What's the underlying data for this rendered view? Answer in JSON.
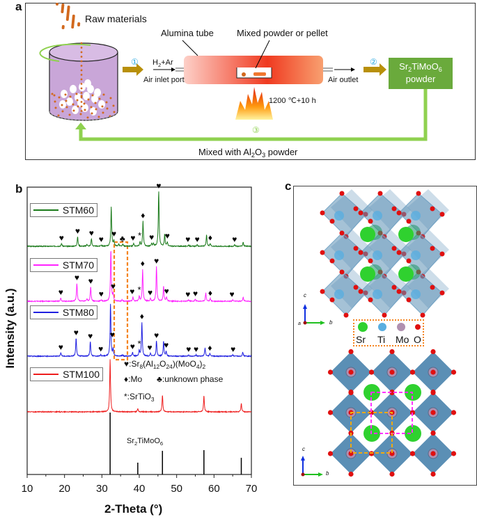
{
  "panel_a": {
    "label": "a",
    "raw_materials": "Raw materials",
    "alumina_tube": "Alumina tube",
    "mixed_powder": "Mixed powder or pellet",
    "gas": [
      "H",
      "2",
      "+Ar"
    ],
    "air_inlet": "Air inlet port",
    "air_outlet": "Air outlet",
    "condition": "1200 ℃+10 h",
    "step1": "①",
    "step2": "②",
    "step3": "③",
    "product": [
      "Sr",
      "2",
      "TiMoO",
      "6"
    ],
    "product_line2": "powder",
    "recycle": [
      "Mixed with Al",
      "2",
      "O",
      "3",
      " powder"
    ],
    "colors": {
      "product_box": "#6aaa3c",
      "recycle_line": "#8fd14f",
      "arrow": "#b8900a",
      "cylinder": "#c9a6d8",
      "step_label": "#29a8e0"
    }
  },
  "chart_data": {
    "type": "line",
    "panel_label": "b",
    "xlabel": "2-Theta (°)",
    "ylabel": "Intensity (a.u.)",
    "xlim": [
      10,
      70
    ],
    "xticks": [
      10,
      20,
      30,
      40,
      50,
      60,
      70
    ],
    "grid": false,
    "series": [
      {
        "name": "STM60",
        "color": "#1a7a1a",
        "peaks": [
          [
            19.2,
            4
          ],
          [
            23.5,
            14
          ],
          [
            26,
            3
          ],
          [
            27.2,
            11
          ],
          [
            29.8,
            2
          ],
          [
            32.5,
            57
          ],
          [
            33.2,
            8
          ],
          [
            34.5,
            3
          ],
          [
            35.6,
            3
          ],
          [
            38.5,
            4
          ],
          [
            40.2,
            6
          ],
          [
            41,
            36
          ],
          [
            43.3,
            4
          ],
          [
            43.8,
            4
          ],
          [
            45.2,
            79
          ],
          [
            46.8,
            17
          ],
          [
            47.5,
            6
          ],
          [
            53.2,
            2
          ],
          [
            55.5,
            2
          ],
          [
            58,
            16
          ],
          [
            59,
            4
          ],
          [
            65.5,
            2
          ],
          [
            67.8,
            6
          ]
        ],
        "markers": [
          [
            19.2,
            "♥"
          ],
          [
            23.5,
            "♥"
          ],
          [
            27.2,
            "♥"
          ],
          [
            29.8,
            "♥"
          ],
          [
            33.2,
            "♥"
          ],
          [
            35.5,
            "♣"
          ],
          [
            38.3,
            "♥"
          ],
          [
            40.1,
            "*"
          ],
          [
            41,
            "♦"
          ],
          [
            43.3,
            "♥"
          ],
          [
            45.2,
            "♥"
          ],
          [
            47.5,
            "♥"
          ],
          [
            53,
            "♥"
          ],
          [
            55.5,
            "♥"
          ],
          [
            59,
            "♦"
          ],
          [
            65.5,
            "♥"
          ]
        ]
      },
      {
        "name": "STM70",
        "color": "#ff22ff",
        "peaks": [
          [
            19,
            5
          ],
          [
            23.3,
            26
          ],
          [
            26,
            3
          ],
          [
            27,
            21
          ],
          [
            29.8,
            2
          ],
          [
            32.4,
            75
          ],
          [
            33,
            10
          ],
          [
            35.4,
            2
          ],
          [
            38.3,
            6
          ],
          [
            40,
            7
          ],
          [
            40.9,
            46
          ],
          [
            43,
            4
          ],
          [
            44.6,
            50
          ],
          [
            46.5,
            22
          ],
          [
            47.3,
            6
          ],
          [
            53.2,
            2
          ],
          [
            55,
            3
          ],
          [
            57.8,
            12
          ],
          [
            59,
            4
          ],
          [
            65,
            2
          ],
          [
            67.8,
            6
          ]
        ],
        "markers": [
          [
            19,
            "♥"
          ],
          [
            23.3,
            "♥"
          ],
          [
            27,
            "♥"
          ],
          [
            29.8,
            "♥"
          ],
          [
            33,
            "♥"
          ],
          [
            38.1,
            "♥"
          ],
          [
            40,
            "*"
          ],
          [
            40.9,
            "♦"
          ],
          [
            42.9,
            "♥"
          ],
          [
            44.6,
            "♥"
          ],
          [
            47.3,
            "♥"
          ],
          [
            53,
            "♥"
          ],
          [
            55,
            "♥"
          ],
          [
            59,
            "♦"
          ],
          [
            64.8,
            "♥"
          ]
        ]
      },
      {
        "name": "STM80",
        "color": "#1f1fe0",
        "peaks": [
          [
            19,
            5
          ],
          [
            23.1,
            26
          ],
          [
            26.9,
            21
          ],
          [
            29.7,
            2
          ],
          [
            32.3,
            75
          ],
          [
            33,
            10
          ],
          [
            35.5,
            2
          ],
          [
            38.2,
            6
          ],
          [
            40,
            8
          ],
          [
            40.7,
            49
          ],
          [
            43,
            4
          ],
          [
            44.6,
            22
          ],
          [
            46.5,
            22
          ],
          [
            47.2,
            7
          ],
          [
            53.2,
            2
          ],
          [
            55.2,
            2
          ],
          [
            57.6,
            12
          ],
          [
            58.9,
            4
          ],
          [
            65,
            2
          ],
          [
            67.7,
            6
          ]
        ],
        "markers": [
          [
            19,
            "♥"
          ],
          [
            23.1,
            "♥"
          ],
          [
            26.9,
            "♥"
          ],
          [
            29.7,
            "♥"
          ],
          [
            32.8,
            "♥"
          ],
          [
            38.2,
            "♥"
          ],
          [
            40,
            "*"
          ],
          [
            40.7,
            "♦"
          ],
          [
            42.8,
            "♥"
          ],
          [
            44.6,
            "♥"
          ],
          [
            47.2,
            "♥"
          ],
          [
            53.2,
            "♥"
          ],
          [
            55.2,
            "♥"
          ],
          [
            58.9,
            "♦"
          ],
          [
            65.1,
            "♥"
          ]
        ]
      },
      {
        "name": "STM100",
        "color": "#ee1c1c",
        "peaks": [
          [
            32.2,
            76
          ],
          [
            39.6,
            5
          ],
          [
            46.2,
            24
          ],
          [
            57.3,
            23
          ],
          [
            67.3,
            12
          ]
        ],
        "markers": []
      }
    ],
    "reference": {
      "name": [
        "Sr",
        "2",
        "TiMoO",
        "6"
      ],
      "color": "#000000",
      "sticks": [
        [
          32.2,
          89
        ],
        [
          39.6,
          17
        ],
        [
          46.2,
          34
        ],
        [
          57.3,
          35
        ],
        [
          67.3,
          24
        ]
      ]
    },
    "phase_legend": {
      "heart": [
        "♥:Sr",
        "8",
        "(Al",
        "12",
        "O",
        "24",
        ")(MoO",
        "4",
        ")",
        "2"
      ],
      "diamond": "♦:Mo",
      "club": "♣:unknown phase",
      "star": [
        "*:SrTiO",
        "3"
      ]
    },
    "highlight_color": "#f5841f"
  },
  "panel_c": {
    "label": "c",
    "atoms": [
      {
        "name": "Sr",
        "color": "#2fd12f"
      },
      {
        "name": "Ti",
        "color": "#5aaee0"
      },
      {
        "name": "Mo",
        "color": "#b090b0"
      },
      {
        "name": "O",
        "color": "#e01010"
      }
    ],
    "axis_c": "c",
    "axis_b": "b",
    "axis_a": "a",
    "octahedron_color": "#5b8fb5",
    "unit_cell_colors": [
      "#ff33ff",
      "#f0aa10"
    ]
  }
}
